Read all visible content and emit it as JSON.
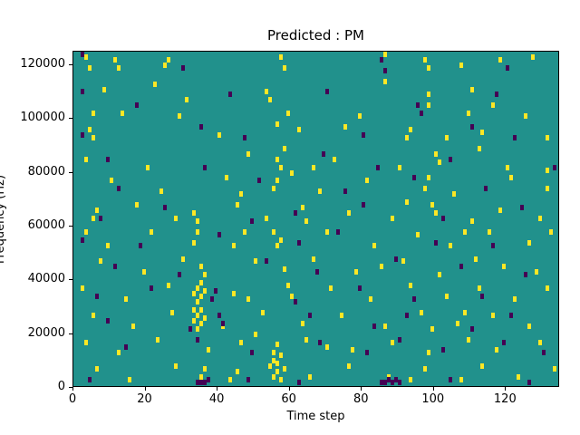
{
  "chart_data": {
    "type": "heatmap",
    "title": "Predicted : PM",
    "xlabel": "Time step",
    "ylabel": "Frequency (Hz)",
    "x_ticks": [
      0,
      20,
      40,
      60,
      80,
      100,
      120
    ],
    "y_ticks": [
      0,
      20000,
      40000,
      60000,
      80000,
      100000,
      120000
    ],
    "xlim": [
      0,
      135
    ],
    "ylim": [
      0,
      125000
    ],
    "grid": false,
    "legend": "none",
    "colors": {
      "figure_background": "#ffffff",
      "background": "#21918c",
      "active": "#fde725",
      "inactive": "#440154",
      "axis": "#000000"
    },
    "yellow_cells": [
      [
        3,
        122000
      ],
      [
        4,
        118000
      ],
      [
        11,
        121000
      ],
      [
        12,
        118000
      ],
      [
        25,
        119000
      ],
      [
        26,
        121000
      ],
      [
        57,
        122000
      ],
      [
        58,
        118000
      ],
      [
        86,
        124000
      ],
      [
        97,
        121000
      ],
      [
        98,
        118000
      ],
      [
        107,
        119000
      ],
      [
        118,
        121000
      ],
      [
        127,
        122000
      ],
      [
        8,
        110000
      ],
      [
        22,
        112000
      ],
      [
        31,
        106000
      ],
      [
        53,
        109000
      ],
      [
        54,
        106000
      ],
      [
        86,
        113000
      ],
      [
        98,
        108000
      ],
      [
        98,
        104000
      ],
      [
        110,
        110000
      ],
      [
        116,
        104000
      ],
      [
        5,
        101000
      ],
      [
        13,
        101000
      ],
      [
        29,
        100000
      ],
      [
        59,
        101000
      ],
      [
        79,
        100000
      ],
      [
        109,
        101000
      ],
      [
        125,
        100000
      ],
      [
        4,
        95000
      ],
      [
        5,
        92000
      ],
      [
        40,
        93000
      ],
      [
        56,
        97000
      ],
      [
        62,
        95000
      ],
      [
        75,
        96000
      ],
      [
        92,
        92000
      ],
      [
        93,
        95000
      ],
      [
        103,
        92000
      ],
      [
        113,
        94000
      ],
      [
        131,
        92000
      ],
      [
        3,
        84000
      ],
      [
        20,
        81000
      ],
      [
        48,
        86000
      ],
      [
        56,
        84000
      ],
      [
        57,
        81000
      ],
      [
        58,
        88000
      ],
      [
        66,
        81000
      ],
      [
        72,
        84000
      ],
      [
        90,
        81000
      ],
      [
        100,
        86000
      ],
      [
        101,
        83000
      ],
      [
        112,
        88000
      ],
      [
        120,
        81000
      ],
      [
        131,
        80000
      ],
      [
        10,
        76000
      ],
      [
        24,
        72000
      ],
      [
        42,
        77000
      ],
      [
        46,
        71000
      ],
      [
        55,
        73000
      ],
      [
        56,
        76000
      ],
      [
        60,
        79000
      ],
      [
        68,
        72000
      ],
      [
        81,
        76000
      ],
      [
        97,
        73000
      ],
      [
        98,
        77000
      ],
      [
        105,
        71000
      ],
      [
        121,
        77000
      ],
      [
        131,
        73000
      ],
      [
        5,
        62000
      ],
      [
        6,
        65000
      ],
      [
        17,
        67000
      ],
      [
        28,
        62000
      ],
      [
        33,
        64000
      ],
      [
        34,
        61000
      ],
      [
        45,
        67000
      ],
      [
        53,
        62000
      ],
      [
        63,
        66000
      ],
      [
        64,
        61000
      ],
      [
        76,
        64000
      ],
      [
        88,
        62000
      ],
      [
        92,
        68000
      ],
      [
        99,
        67000
      ],
      [
        100,
        64000
      ],
      [
        110,
        61000
      ],
      [
        118,
        65000
      ],
      [
        129,
        62000
      ],
      [
        3,
        57000
      ],
      [
        9,
        52000
      ],
      [
        21,
        57000
      ],
      [
        33,
        53000
      ],
      [
        34,
        57000
      ],
      [
        44,
        52000
      ],
      [
        47,
        57000
      ],
      [
        55,
        57000
      ],
      [
        56,
        52000
      ],
      [
        57,
        54000
      ],
      [
        70,
        57000
      ],
      [
        83,
        52000
      ],
      [
        95,
        56000
      ],
      [
        104,
        52000
      ],
      [
        108,
        57000
      ],
      [
        115,
        57000
      ],
      [
        126,
        53000
      ],
      [
        132,
        57000
      ],
      [
        7,
        46000
      ],
      [
        19,
        42000
      ],
      [
        30,
        47000
      ],
      [
        35,
        44000
      ],
      [
        36,
        41000
      ],
      [
        50,
        46000
      ],
      [
        58,
        43000
      ],
      [
        66,
        47000
      ],
      [
        78,
        42000
      ],
      [
        85,
        44000
      ],
      [
        91,
        46000
      ],
      [
        101,
        41000
      ],
      [
        111,
        47000
      ],
      [
        119,
        44000
      ],
      [
        128,
        42000
      ],
      [
        2,
        36000
      ],
      [
        14,
        32000
      ],
      [
        26,
        37000
      ],
      [
        33,
        34000
      ],
      [
        34,
        31000
      ],
      [
        34,
        36000
      ],
      [
        35,
        33000
      ],
      [
        35,
        38000
      ],
      [
        36,
        35000
      ],
      [
        44,
        34000
      ],
      [
        48,
        32000
      ],
      [
        59,
        37000
      ],
      [
        60,
        33000
      ],
      [
        71,
        36000
      ],
      [
        82,
        32000
      ],
      [
        93,
        37000
      ],
      [
        103,
        33000
      ],
      [
        112,
        36000
      ],
      [
        122,
        32000
      ],
      [
        131,
        36000
      ],
      [
        5,
        26000
      ],
      [
        16,
        22000
      ],
      [
        27,
        27000
      ],
      [
        33,
        24000
      ],
      [
        33,
        28000
      ],
      [
        34,
        21000
      ],
      [
        34,
        26000
      ],
      [
        35,
        23000
      ],
      [
        35,
        28000
      ],
      [
        36,
        25000
      ],
      [
        41,
        22000
      ],
      [
        52,
        27000
      ],
      [
        63,
        23000
      ],
      [
        74,
        26000
      ],
      [
        86,
        22000
      ],
      [
        96,
        27000
      ],
      [
        99,
        21000
      ],
      [
        106,
        23000
      ],
      [
        108,
        27000
      ],
      [
        116,
        26000
      ],
      [
        126,
        22000
      ],
      [
        3,
        16000
      ],
      [
        12,
        12000
      ],
      [
        23,
        17000
      ],
      [
        37,
        13000
      ],
      [
        46,
        16000
      ],
      [
        50,
        19000
      ],
      [
        55,
        12000
      ],
      [
        56,
        15000
      ],
      [
        57,
        11000
      ],
      [
        64,
        17000
      ],
      [
        70,
        14000
      ],
      [
        77,
        13000
      ],
      [
        88,
        16000
      ],
      [
        98,
        12000
      ],
      [
        109,
        17000
      ],
      [
        117,
        13000
      ],
      [
        129,
        16000
      ],
      [
        6,
        6000
      ],
      [
        15,
        2000
      ],
      [
        28,
        7000
      ],
      [
        35,
        3000
      ],
      [
        36,
        6000
      ],
      [
        43,
        2000
      ],
      [
        45,
        5000
      ],
      [
        54,
        7000
      ],
      [
        55,
        3000
      ],
      [
        55,
        9000
      ],
      [
        56,
        5000
      ],
      [
        56,
        8000
      ],
      [
        57,
        2000
      ],
      [
        58,
        6000
      ],
      [
        65,
        3000
      ],
      [
        76,
        7000
      ],
      [
        87,
        3000
      ],
      [
        93,
        2000
      ],
      [
        97,
        6000
      ],
      [
        107,
        2000
      ],
      [
        113,
        7000
      ],
      [
        123,
        3000
      ],
      [
        133,
        6000
      ]
    ],
    "dark_cells": [
      [
        2,
        124000
      ],
      [
        30,
        118000
      ],
      [
        85,
        121000
      ],
      [
        86,
        117000
      ],
      [
        120,
        118000
      ],
      [
        2,
        109000
      ],
      [
        17,
        104000
      ],
      [
        43,
        108000
      ],
      [
        70,
        109000
      ],
      [
        95,
        104000
      ],
      [
        96,
        101000
      ],
      [
        117,
        108000
      ],
      [
        2,
        93000
      ],
      [
        35,
        96000
      ],
      [
        47,
        92000
      ],
      [
        80,
        93000
      ],
      [
        110,
        96000
      ],
      [
        122,
        92000
      ],
      [
        9,
        84000
      ],
      [
        36,
        81000
      ],
      [
        69,
        86000
      ],
      [
        84,
        81000
      ],
      [
        104,
        84000
      ],
      [
        133,
        81000
      ],
      [
        12,
        73000
      ],
      [
        51,
        76000
      ],
      [
        75,
        72000
      ],
      [
        94,
        77000
      ],
      [
        114,
        73000
      ],
      [
        7,
        62000
      ],
      [
        25,
        66000
      ],
      [
        49,
        61000
      ],
      [
        61,
        64000
      ],
      [
        80,
        67000
      ],
      [
        102,
        62000
      ],
      [
        124,
        66000
      ],
      [
        2,
        54000
      ],
      [
        18,
        52000
      ],
      [
        40,
        56000
      ],
      [
        62,
        53000
      ],
      [
        73,
        57000
      ],
      [
        100,
        53000
      ],
      [
        116,
        52000
      ],
      [
        11,
        44000
      ],
      [
        29,
        41000
      ],
      [
        53,
        46000
      ],
      [
        67,
        42000
      ],
      [
        89,
        47000
      ],
      [
        107,
        44000
      ],
      [
        125,
        41000
      ],
      [
        6,
        33000
      ],
      [
        21,
        36000
      ],
      [
        38,
        32000
      ],
      [
        39,
        35000
      ],
      [
        61,
        31000
      ],
      [
        79,
        36000
      ],
      [
        94,
        32000
      ],
      [
        113,
        33000
      ],
      [
        9,
        24000
      ],
      [
        32,
        21000
      ],
      [
        40,
        26000
      ],
      [
        41,
        23000
      ],
      [
        65,
        26000
      ],
      [
        83,
        22000
      ],
      [
        92,
        26000
      ],
      [
        110,
        21000
      ],
      [
        121,
        26000
      ],
      [
        14,
        14000
      ],
      [
        34,
        17000
      ],
      [
        49,
        12000
      ],
      [
        68,
        16000
      ],
      [
        81,
        12000
      ],
      [
        90,
        17000
      ],
      [
        102,
        13000
      ],
      [
        119,
        16000
      ],
      [
        130,
        12000
      ],
      [
        4,
        2000
      ],
      [
        34,
        1000
      ],
      [
        35,
        1000
      ],
      [
        36,
        1000
      ],
      [
        37,
        2000
      ],
      [
        48,
        2000
      ],
      [
        62,
        1000
      ],
      [
        85,
        1000
      ],
      [
        86,
        1000
      ],
      [
        87,
        2000
      ],
      [
        88,
        1000
      ],
      [
        89,
        2000
      ],
      [
        90,
        1000
      ],
      [
        104,
        2000
      ],
      [
        126,
        1000
      ]
    ]
  }
}
